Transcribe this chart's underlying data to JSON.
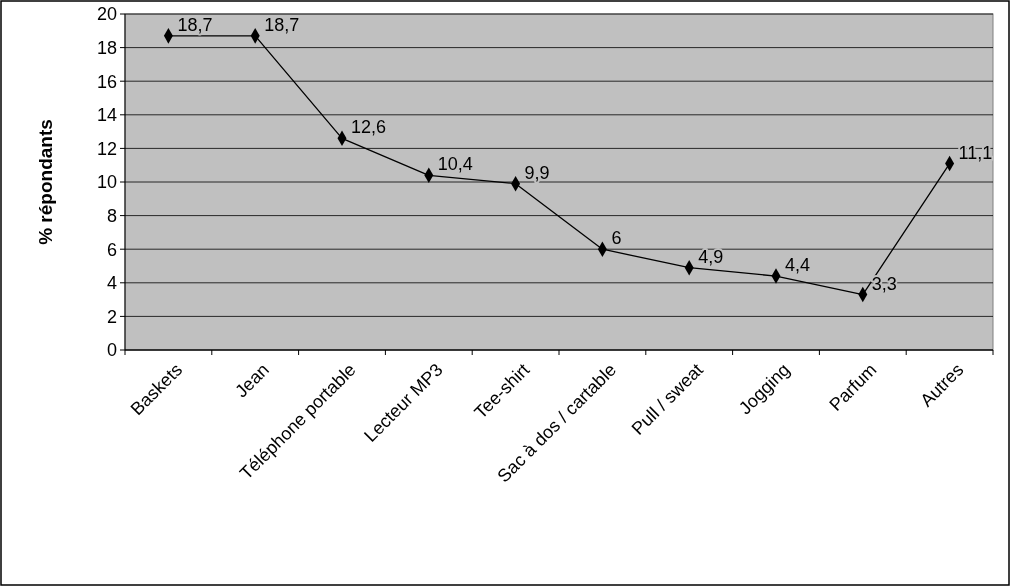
{
  "chart_data": {
    "type": "line",
    "ylabel": "% répondants",
    "categories": [
      "Baskets",
      "Jean",
      "Téléphone portable",
      "Lecteur MP3",
      "Tee-shirt",
      "Sac à dos / cartable",
      "Pull / sweat",
      "Jogging",
      "Parfum",
      "Autres"
    ],
    "series": [
      {
        "color": "#000000",
        "values": [
          18.7,
          18.7,
          12.6,
          10.4,
          9.9,
          6,
          4.9,
          4.4,
          3.3,
          11.1
        ]
      }
    ],
    "value_labels": [
      "18,7",
      "18,7",
      "12,6",
      "10,4",
      "9,9",
      "6",
      "4,9",
      "4,4",
      "3,3",
      "11,1"
    ],
    "ylim": [
      0,
      20
    ],
    "yticks": [
      0,
      2,
      4,
      6,
      8,
      10,
      12,
      14,
      16,
      18,
      20
    ],
    "grid": "y",
    "marker": "diamond",
    "line_style": "solid"
  }
}
